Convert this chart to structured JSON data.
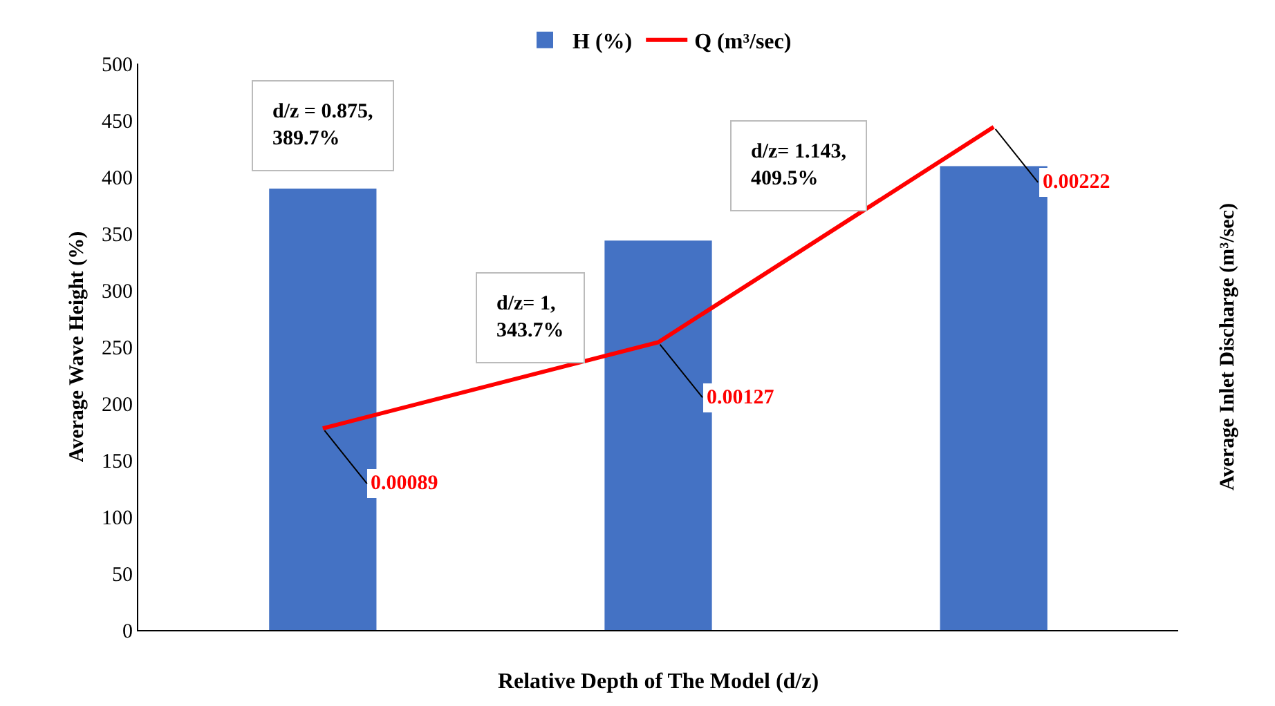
{
  "chart_data": {
    "type": "bar",
    "xlabel": "Relative Depth of The Model (d/z)",
    "ylabel": "Average Wave Height (%)",
    "y2label": "Average Inlet Discharge (m³/sec)",
    "categories": [
      null,
      null,
      null
    ],
    "series": [
      {
        "name": "H (%)",
        "type": "bar",
        "color": "#4472c4",
        "values": [
          389.7,
          343.7,
          409.5
        ]
      },
      {
        "name": "Q (m³/sec)",
        "type": "line",
        "axis": "y2",
        "color": "#ff0000",
        "values": [
          0.00089,
          0.00127,
          0.00222
        ],
        "value_labels": [
          "0.00089",
          "0.00127",
          "0.00222"
        ]
      }
    ],
    "ylim": [
      0,
      500
    ],
    "yticks": [
      0,
      50,
      100,
      150,
      200,
      250,
      300,
      350,
      400,
      450,
      500
    ],
    "y2lim": [
      0,
      0.0025
    ],
    "annotations": [
      "d/z = 0.875,\n389.7%",
      "d/z= 1,\n343.7%",
      "d/z= 1.143,\n409.5%"
    ],
    "tick_labels": "y",
    "grid": false,
    "legend": "top",
    "marker": "none",
    "line_style": "solid"
  }
}
